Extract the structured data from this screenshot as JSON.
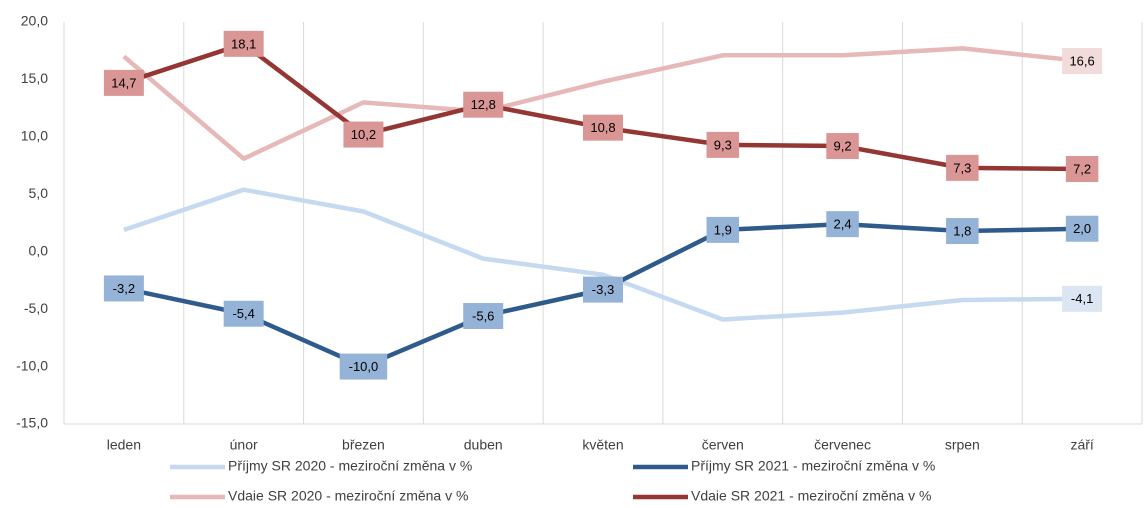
{
  "chart_data": {
    "type": "line",
    "categories": [
      "leden",
      "únor",
      "březen",
      "duben",
      "květen",
      "červen",
      "červenec",
      "srpen",
      "září"
    ],
    "series": [
      {
        "name": "Příjmy SR 2020 - meziroční změna v %",
        "color": "#c5d9f1",
        "label_fill": "#dce6f2",
        "values": [
          1.9,
          5.4,
          3.5,
          -0.6,
          -2.0,
          -5.9,
          -5.3,
          -4.2,
          -4.1
        ],
        "value_labels": [
          null,
          null,
          null,
          null,
          null,
          null,
          null,
          null,
          "-4,1"
        ]
      },
      {
        "name": "Příjmy SR 2021 - meziroční změna v %",
        "color": "#2f5a8c",
        "label_fill": "#95b3d7",
        "values": [
          -3.2,
          -5.4,
          -10.0,
          -5.6,
          -3.3,
          1.9,
          2.4,
          1.8,
          2.0
        ],
        "value_labels": [
          "-3,2",
          "-5,4",
          "-10,0",
          "-5,6",
          "-3,3",
          "1,9",
          "2,4",
          "1,8",
          "2,0"
        ]
      },
      {
        "name": "Vdaie SR 2020 - meziroční změna v %",
        "color": "#e6b8b7",
        "label_fill": "#f2dcdb",
        "values": [
          17.0,
          8.1,
          13.0,
          12.2,
          14.8,
          17.1,
          17.1,
          17.7,
          16.6
        ],
        "value_labels": [
          null,
          null,
          null,
          null,
          null,
          null,
          null,
          null,
          "16,6"
        ]
      },
      {
        "name": "Vdaie SR 2021 - meziroční změna v %",
        "color": "#943634",
        "label_fill": "#da9694",
        "values": [
          14.7,
          18.1,
          10.2,
          12.8,
          10.8,
          9.3,
          9.2,
          7.3,
          7.2
        ],
        "value_labels": [
          "14,7",
          "18,1",
          "10,2",
          "12,8",
          "10,8",
          "9,3",
          "9,2",
          "7,3",
          "7,2"
        ]
      }
    ],
    "ylim": [
      -15,
      20
    ],
    "yticks": [
      {
        "value": -15,
        "label": "-15,0"
      },
      {
        "value": -10,
        "label": "-10,0"
      },
      {
        "value": -5,
        "label": "-5,0"
      },
      {
        "value": 0,
        "label": "0,0"
      },
      {
        "value": 5,
        "label": "5,0"
      },
      {
        "value": 10,
        "label": "10,0"
      },
      {
        "value": 15,
        "label": "15,0"
      },
      {
        "value": 20,
        "label": "20,0"
      }
    ],
    "grid": "x"
  }
}
